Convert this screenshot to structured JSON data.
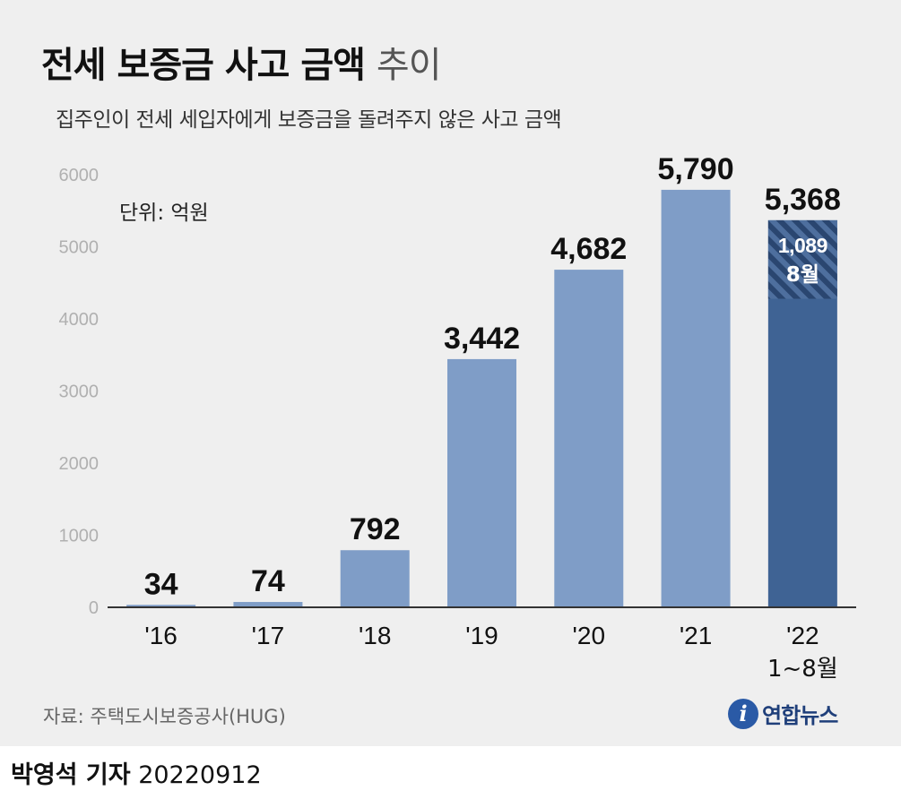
{
  "header": {
    "title_main": "전세 보증금 사고 금액",
    "title_suffix": "추이",
    "subtitle": "집주인이 전세 세입자에게 보증금을 돌려주지 않은 사고 금액"
  },
  "chart_data": {
    "type": "bar",
    "title": "전세 보증금 사고 금액 추이",
    "subtitle": "집주인이 전세 세입자에게 보증금을 돌려주지 않은 사고 금액",
    "unit_label": "단위: 억원",
    "categories": [
      "'16",
      "'17",
      "'18",
      "'19",
      "'20",
      "'21",
      "'22"
    ],
    "category_sublabels": [
      "",
      "",
      "",
      "",
      "",
      "",
      "1~8월"
    ],
    "values": [
      34,
      74,
      792,
      3442,
      4682,
      5790,
      5368
    ],
    "value_labels": [
      "34",
      "74",
      "792",
      "3,442",
      "4,682",
      "5,790",
      "5,368"
    ],
    "ylim": [
      0,
      6000
    ],
    "yticks": [
      0,
      1000,
      2000,
      3000,
      4000,
      5000,
      6000
    ],
    "grid": false,
    "highlight": {
      "category_index": 6,
      "value": 1089,
      "label": "1,089",
      "sublabel": "8월"
    },
    "colors": {
      "bar": "#7f9dc7",
      "bar_highlight": "#3f6394",
      "stripe_dark": "#2a4670",
      "stripe_light": "#4e6f9e",
      "axis": "#333333",
      "tick_text": "#b0b0b0"
    }
  },
  "footer": {
    "source": "자료: 주택도시보증공사(HUG)",
    "logo_mark": "i",
    "logo_text": "연합뉴스",
    "reporter": "박영석 기자",
    "date": "20220912"
  }
}
